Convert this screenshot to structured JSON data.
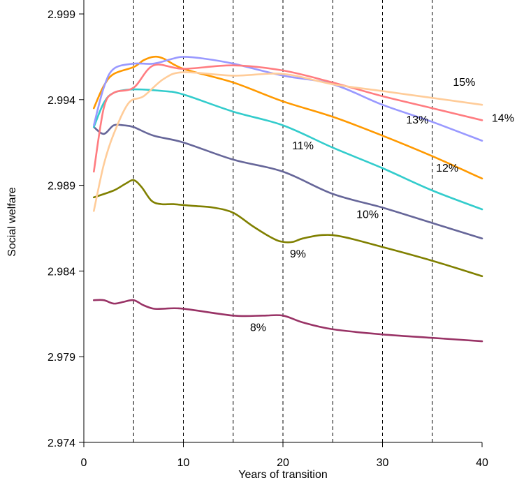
{
  "chart_data": {
    "type": "line",
    "xlabel": "Years of transition",
    "ylabel": "Social welfare",
    "xlim": [
      0,
      40
    ],
    "ylim": [
      2.974,
      2.999
    ],
    "x_ticks": [
      "0",
      "10",
      "20",
      "30",
      "40"
    ],
    "y_ticks": [
      "2.974",
      "2.979",
      "2.984",
      "2.989",
      "2.994",
      "2.999"
    ],
    "grid": "dashed vertical lines every 5 years",
    "vgrid_x": [
      5,
      10,
      15,
      20,
      25,
      30,
      35
    ],
    "series": [
      {
        "name": "8%",
        "color": "#993366",
        "label_at": [
          17.5,
          2.9805
        ],
        "points": [
          [
            1,
            2.9823
          ],
          [
            2,
            2.9823
          ],
          [
            3,
            2.9821
          ],
          [
            4,
            2.9822
          ],
          [
            5,
            2.9823
          ],
          [
            6,
            2.982
          ],
          [
            7,
            2.9818
          ],
          [
            8,
            2.9818
          ],
          [
            10,
            2.9818
          ],
          [
            15,
            2.9814
          ],
          [
            18,
            2.9814
          ],
          [
            20,
            2.9814
          ],
          [
            22,
            2.981
          ],
          [
            25,
            2.9806
          ],
          [
            30,
            2.9803
          ],
          [
            35,
            2.9801
          ],
          [
            40,
            2.9799
          ]
        ]
      },
      {
        "name": "9%",
        "color": "#808000",
        "label_at": [
          21.5,
          2.9848
        ],
        "points": [
          [
            1,
            2.9883
          ],
          [
            3,
            2.9887
          ],
          [
            4.2,
            2.9891
          ],
          [
            5,
            2.9893
          ],
          [
            5.8,
            2.9889
          ],
          [
            6.8,
            2.9881
          ],
          [
            7.8,
            2.9879
          ],
          [
            9,
            2.9879
          ],
          [
            11,
            2.9878
          ],
          [
            13,
            2.9877
          ],
          [
            15,
            2.9874
          ],
          [
            17,
            2.9866
          ],
          [
            19,
            2.9859
          ],
          [
            20,
            2.9857
          ],
          [
            21,
            2.9857
          ],
          [
            22,
            2.9859
          ],
          [
            24,
            2.9861
          ],
          [
            26,
            2.986
          ],
          [
            30,
            2.9854
          ],
          [
            35,
            2.9846
          ],
          [
            40,
            2.9837
          ]
        ]
      },
      {
        "name": "10%",
        "color": "#666699",
        "label_at": [
          28.5,
          2.9871
        ],
        "points": [
          [
            1,
            2.9924
          ],
          [
            2,
            2.992
          ],
          [
            3,
            2.9925
          ],
          [
            4,
            2.9925
          ],
          [
            5,
            2.9924
          ],
          [
            7,
            2.9919
          ],
          [
            10,
            2.9915
          ],
          [
            15,
            2.9905
          ],
          [
            20,
            2.9898
          ],
          [
            25,
            2.9885
          ],
          [
            30,
            2.9877
          ],
          [
            35,
            2.9868
          ],
          [
            40,
            2.9859
          ]
        ]
      },
      {
        "name": "11%",
        "color": "#33CCCC",
        "label_at": [
          22,
          2.9911
        ],
        "points": [
          [
            1,
            2.9924
          ],
          [
            2,
            2.9938
          ],
          [
            3,
            2.9944
          ],
          [
            5,
            2.9946
          ],
          [
            8,
            2.9945
          ],
          [
            10,
            2.9943
          ],
          [
            15,
            2.9933
          ],
          [
            20,
            2.9925
          ],
          [
            25,
            2.9912
          ],
          [
            30,
            2.99
          ],
          [
            35,
            2.9887
          ],
          [
            40,
            2.9876
          ]
        ]
      },
      {
        "name": "12%",
        "color": "#FF9900",
        "label_at": [
          36.5,
          2.9898
        ],
        "points": [
          [
            1,
            2.9935
          ],
          [
            2,
            2.9948
          ],
          [
            3,
            2.9955
          ],
          [
            5,
            2.9959
          ],
          [
            6,
            2.9963
          ],
          [
            7,
            2.9965
          ],
          [
            8,
            2.9964
          ],
          [
            10,
            2.9958
          ],
          [
            15,
            2.995
          ],
          [
            20,
            2.9939
          ],
          [
            25,
            2.993
          ],
          [
            30,
            2.9919
          ],
          [
            35,
            2.9907
          ],
          [
            40,
            2.9894
          ]
        ]
      },
      {
        "name": "13%",
        "color": "#9999FF",
        "label_at": [
          33.5,
          2.9926
        ],
        "points": [
          [
            1,
            2.9925
          ],
          [
            2,
            2.9947
          ],
          [
            3,
            2.9958
          ],
          [
            5,
            2.9961
          ],
          [
            7,
            2.9961
          ],
          [
            9,
            2.9964
          ],
          [
            10,
            2.9965
          ],
          [
            12,
            2.9964
          ],
          [
            15,
            2.9961
          ],
          [
            20,
            2.9954
          ],
          [
            25,
            2.9949
          ],
          [
            30,
            2.9937
          ],
          [
            35,
            2.9927
          ],
          [
            40,
            2.9916
          ]
        ]
      },
      {
        "name": "14%",
        "color": "#FF7C80",
        "label_at": [
          42.1,
          2.9927
        ],
        "points": [
          [
            1,
            2.9898
          ],
          [
            2,
            2.9935
          ],
          [
            3,
            2.9944
          ],
          [
            5,
            2.9947
          ],
          [
            7,
            2.996
          ],
          [
            10,
            2.9958
          ],
          [
            15,
            2.996
          ],
          [
            20,
            2.9957
          ],
          [
            25,
            2.995
          ],
          [
            30,
            2.9942
          ],
          [
            35,
            2.9935
          ],
          [
            40,
            2.9928
          ]
        ]
      },
      {
        "name": "15%",
        "color": "#FFCC99",
        "label_at": [
          38.2,
          2.9948
        ],
        "points": [
          [
            1,
            2.9875
          ],
          [
            2,
            2.9902
          ],
          [
            3,
            2.992
          ],
          [
            4.5,
            2.9938
          ],
          [
            6,
            2.9942
          ],
          [
            8,
            2.9952
          ],
          [
            10,
            2.9956
          ],
          [
            15,
            2.9954
          ],
          [
            20,
            2.9955
          ],
          [
            25,
            2.9949
          ],
          [
            30,
            2.9945
          ],
          [
            35,
            2.9941
          ],
          [
            40,
            2.9937
          ]
        ]
      }
    ]
  }
}
